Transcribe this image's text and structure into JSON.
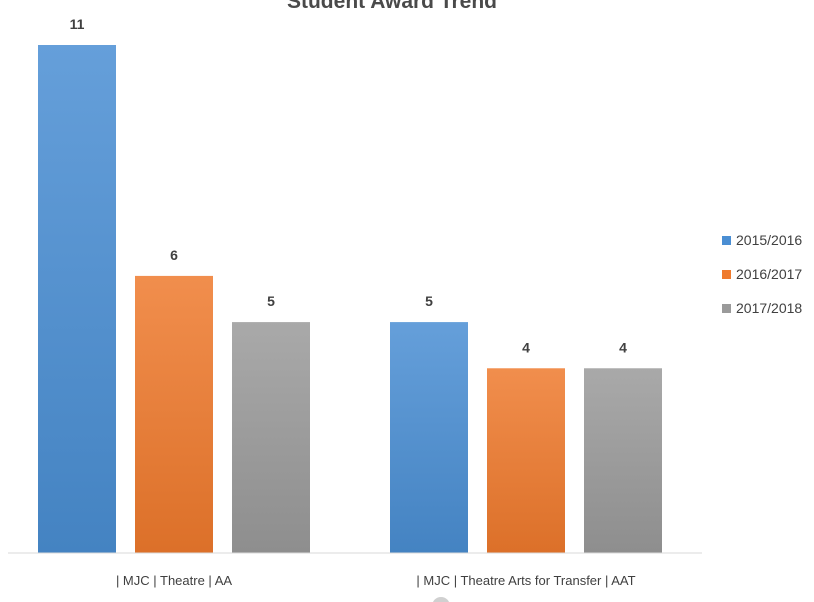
{
  "chart_data": {
    "type": "bar",
    "title": "Student Award Trend",
    "categories": [
      "| MJC | Theatre | AA",
      "| MJC | Theatre Arts for Transfer | AAT"
    ],
    "series": [
      {
        "name": "2015/2016",
        "values": [
          11,
          5
        ],
        "color": "#4a8ed3"
      },
      {
        "name": "2016/2017",
        "values": [
          6,
          4
        ],
        "color": "#ef7a2d"
      },
      {
        "name": "2017/2018",
        "values": [
          5,
          4
        ],
        "color": "#9a9a9a"
      }
    ],
    "ylim": [
      0,
      11
    ],
    "grid": false,
    "legend_position": "right",
    "data_labels": true
  }
}
